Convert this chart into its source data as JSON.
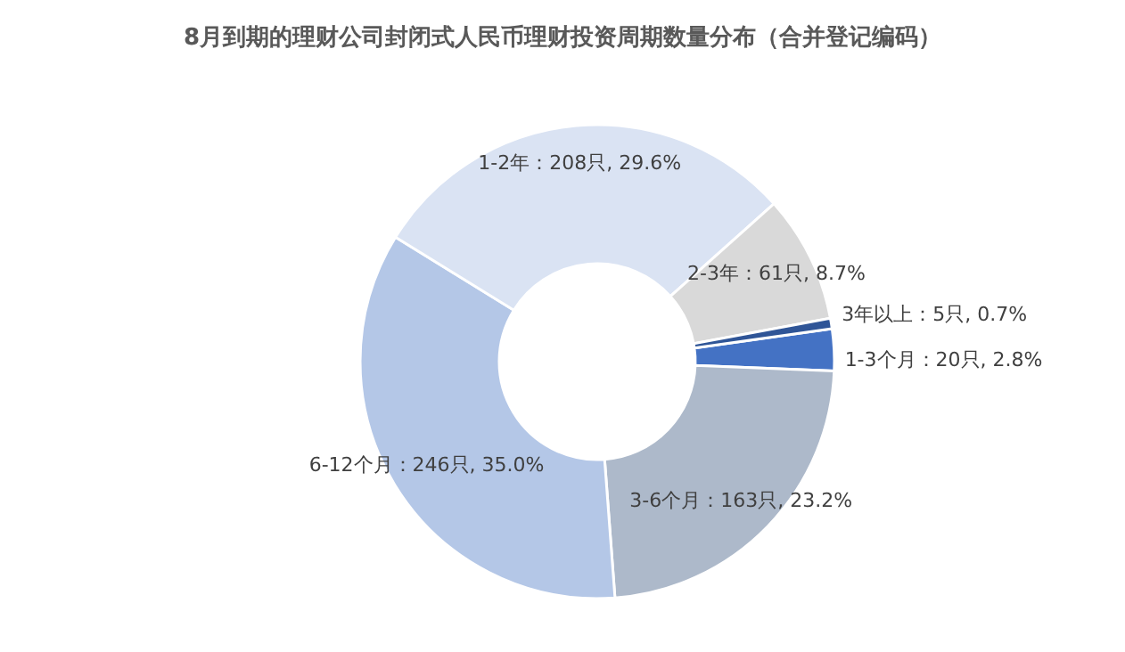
{
  "chart_data": {
    "type": "donut",
    "title": "8月到期的理财公司封闭式人民币理财投资周期数量分布（合并登记编码）",
    "categories": [
      "1-3个月",
      "3-6个月",
      "6-12个月",
      "1-2年",
      "2-3年",
      "3年以上"
    ],
    "values": [
      20,
      163,
      246,
      208,
      61,
      5
    ],
    "colors": [
      "#4472c4",
      "#adb9ca",
      "#b4c7e7",
      "#dae3f3",
      "#d9d9d9",
      "#2f5597"
    ],
    "value_labels": [
      "20只, 2.8%",
      "163只, 23.2%",
      "246只, 35.0%",
      "208只, 29.6%",
      "61只, 8.7%",
      "5只, 0.7%"
    ]
  }
}
